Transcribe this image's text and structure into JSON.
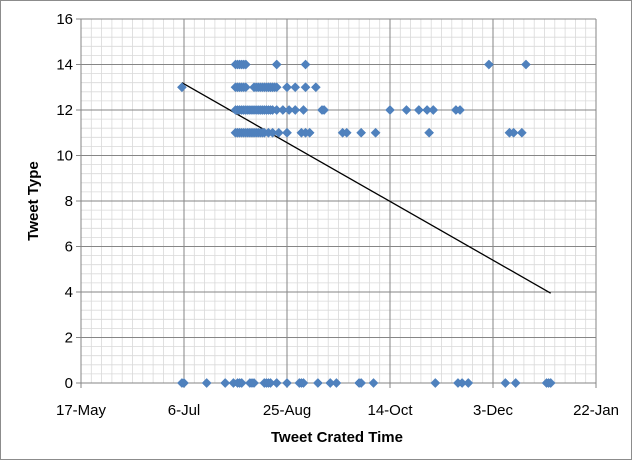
{
  "chart_data": {
    "type": "scatter",
    "title": "",
    "xlabel": "Tweet Crated Time",
    "ylabel": "Tweet Type",
    "xlim": [
      "2013-05-17",
      "2014-01-22"
    ],
    "ylim": [
      0,
      16
    ],
    "grid": true,
    "legend": "none",
    "x_tick_labels": [
      "17-May",
      "6-Jul",
      "25-Aug",
      "14-Oct",
      "3-Dec",
      "22-Jan"
    ],
    "y_tick_labels": [
      "0",
      "2",
      "4",
      "6",
      "8",
      "10",
      "12",
      "14",
      "16"
    ],
    "series": [
      {
        "marker": "diamond",
        "color": "#4f81bd",
        "points": [
          {
            "x": "2013-07-05",
            "y": 13
          },
          {
            "x": "2013-07-31",
            "y": 14
          },
          {
            "x": "2013-08-01",
            "y": 14
          },
          {
            "x": "2013-08-02",
            "y": 14
          },
          {
            "x": "2013-08-03",
            "y": 14
          },
          {
            "x": "2013-08-04",
            "y": 14
          },
          {
            "x": "2013-08-05",
            "y": 14
          },
          {
            "x": "2013-08-20",
            "y": 14
          },
          {
            "x": "2013-09-03",
            "y": 14
          },
          {
            "x": "2013-12-01",
            "y": 14
          },
          {
            "x": "2013-12-19",
            "y": 14
          },
          {
            "x": "2013-07-31",
            "y": 13
          },
          {
            "x": "2013-08-01",
            "y": 13
          },
          {
            "x": "2013-08-02",
            "y": 13
          },
          {
            "x": "2013-08-03",
            "y": 13
          },
          {
            "x": "2013-08-04",
            "y": 13
          },
          {
            "x": "2013-08-05",
            "y": 13
          },
          {
            "x": "2013-08-09",
            "y": 13
          },
          {
            "x": "2013-08-10",
            "y": 13
          },
          {
            "x": "2013-08-11",
            "y": 13
          },
          {
            "x": "2013-08-12",
            "y": 13
          },
          {
            "x": "2013-08-13",
            "y": 13
          },
          {
            "x": "2013-08-14",
            "y": 13
          },
          {
            "x": "2013-08-15",
            "y": 13
          },
          {
            "x": "2013-08-16",
            "y": 13
          },
          {
            "x": "2013-08-17",
            "y": 13
          },
          {
            "x": "2013-08-18",
            "y": 13
          },
          {
            "x": "2013-08-19",
            "y": 13
          },
          {
            "x": "2013-08-20",
            "y": 13
          },
          {
            "x": "2013-08-25",
            "y": 13
          },
          {
            "x": "2013-08-29",
            "y": 13
          },
          {
            "x": "2013-09-03",
            "y": 13
          },
          {
            "x": "2013-09-08",
            "y": 13
          },
          {
            "x": "2013-07-31",
            "y": 12
          },
          {
            "x": "2013-08-01",
            "y": 12
          },
          {
            "x": "2013-08-02",
            "y": 12
          },
          {
            "x": "2013-08-03",
            "y": 12
          },
          {
            "x": "2013-08-04",
            "y": 12
          },
          {
            "x": "2013-08-05",
            "y": 12
          },
          {
            "x": "2013-08-06",
            "y": 12
          },
          {
            "x": "2013-08-07",
            "y": 12
          },
          {
            "x": "2013-08-08",
            "y": 12
          },
          {
            "x": "2013-08-09",
            "y": 12
          },
          {
            "x": "2013-08-10",
            "y": 12
          },
          {
            "x": "2013-08-11",
            "y": 12
          },
          {
            "x": "2013-08-12",
            "y": 12
          },
          {
            "x": "2013-08-13",
            "y": 12
          },
          {
            "x": "2013-08-14",
            "y": 12
          },
          {
            "x": "2013-08-15",
            "y": 12
          },
          {
            "x": "2013-08-16",
            "y": 12
          },
          {
            "x": "2013-08-17",
            "y": 12
          },
          {
            "x": "2013-08-18",
            "y": 12
          },
          {
            "x": "2013-08-20",
            "y": 12
          },
          {
            "x": "2013-08-23",
            "y": 12
          },
          {
            "x": "2013-08-26",
            "y": 12
          },
          {
            "x": "2013-08-29",
            "y": 12
          },
          {
            "x": "2013-09-02",
            "y": 12
          },
          {
            "x": "2013-09-11",
            "y": 12
          },
          {
            "x": "2013-09-12",
            "y": 12
          },
          {
            "x": "2013-10-14",
            "y": 12
          },
          {
            "x": "2013-10-22",
            "y": 12
          },
          {
            "x": "2013-10-28",
            "y": 12
          },
          {
            "x": "2013-11-01",
            "y": 12
          },
          {
            "x": "2013-11-04",
            "y": 12
          },
          {
            "x": "2013-11-15",
            "y": 12
          },
          {
            "x": "2013-11-17",
            "y": 12
          },
          {
            "x": "2013-07-31",
            "y": 11
          },
          {
            "x": "2013-08-01",
            "y": 11
          },
          {
            "x": "2013-08-02",
            "y": 11
          },
          {
            "x": "2013-08-03",
            "y": 11
          },
          {
            "x": "2013-08-04",
            "y": 11
          },
          {
            "x": "2013-08-05",
            "y": 11
          },
          {
            "x": "2013-08-06",
            "y": 11
          },
          {
            "x": "2013-08-07",
            "y": 11
          },
          {
            "x": "2013-08-08",
            "y": 11
          },
          {
            "x": "2013-08-09",
            "y": 11
          },
          {
            "x": "2013-08-10",
            "y": 11
          },
          {
            "x": "2013-08-11",
            "y": 11
          },
          {
            "x": "2013-08-12",
            "y": 11
          },
          {
            "x": "2013-08-13",
            "y": 11
          },
          {
            "x": "2013-08-14",
            "y": 11
          },
          {
            "x": "2013-08-16",
            "y": 11
          },
          {
            "x": "2013-08-18",
            "y": 11
          },
          {
            "x": "2013-08-21",
            "y": 11
          },
          {
            "x": "2013-08-25",
            "y": 11
          },
          {
            "x": "2013-09-01",
            "y": 11
          },
          {
            "x": "2013-09-03",
            "y": 11
          },
          {
            "x": "2013-09-05",
            "y": 11
          },
          {
            "x": "2013-09-21",
            "y": 11
          },
          {
            "x": "2013-09-23",
            "y": 11
          },
          {
            "x": "2013-09-30",
            "y": 11
          },
          {
            "x": "2013-10-07",
            "y": 11
          },
          {
            "x": "2013-11-02",
            "y": 11
          },
          {
            "x": "2013-12-11",
            "y": 11
          },
          {
            "x": "2013-12-13",
            "y": 11
          },
          {
            "x": "2013-12-17",
            "y": 11
          },
          {
            "x": "2013-07-05",
            "y": 0
          },
          {
            "x": "2013-07-06",
            "y": 0
          },
          {
            "x": "2013-07-17",
            "y": 0
          },
          {
            "x": "2013-07-26",
            "y": 0
          },
          {
            "x": "2013-07-30",
            "y": 0
          },
          {
            "x": "2013-08-01",
            "y": 0
          },
          {
            "x": "2013-08-02",
            "y": 0
          },
          {
            "x": "2013-08-03",
            "y": 0
          },
          {
            "x": "2013-08-07",
            "y": 0
          },
          {
            "x": "2013-08-08",
            "y": 0
          },
          {
            "x": "2013-08-09",
            "y": 0
          },
          {
            "x": "2013-08-14",
            "y": 0
          },
          {
            "x": "2013-08-15",
            "y": 0
          },
          {
            "x": "2013-08-16",
            "y": 0
          },
          {
            "x": "2013-08-17",
            "y": 0
          },
          {
            "x": "2013-08-20",
            "y": 0
          },
          {
            "x": "2013-08-25",
            "y": 0
          },
          {
            "x": "2013-08-31",
            "y": 0
          },
          {
            "x": "2013-09-01",
            "y": 0
          },
          {
            "x": "2013-09-02",
            "y": 0
          },
          {
            "x": "2013-09-09",
            "y": 0
          },
          {
            "x": "2013-09-15",
            "y": 0
          },
          {
            "x": "2013-09-18",
            "y": 0
          },
          {
            "x": "2013-09-29",
            "y": 0
          },
          {
            "x": "2013-09-30",
            "y": 0
          },
          {
            "x": "2013-10-06",
            "y": 0
          },
          {
            "x": "2013-11-05",
            "y": 0
          },
          {
            "x": "2013-11-16",
            "y": 0
          },
          {
            "x": "2013-11-18",
            "y": 0
          },
          {
            "x": "2013-11-21",
            "y": 0
          },
          {
            "x": "2013-12-09",
            "y": 0
          },
          {
            "x": "2013-12-14",
            "y": 0
          },
          {
            "x": "2013-12-29",
            "y": 0
          },
          {
            "x": "2013-12-30",
            "y": 0
          },
          {
            "x": "2013-12-31",
            "y": 0
          }
        ]
      }
    ],
    "trendline": {
      "type": "linear",
      "color": "#000000",
      "points": [
        {
          "x": "2013-07-05",
          "y": 13.2
        },
        {
          "x": "2013-12-31",
          "y": 3.95
        }
      ]
    }
  }
}
